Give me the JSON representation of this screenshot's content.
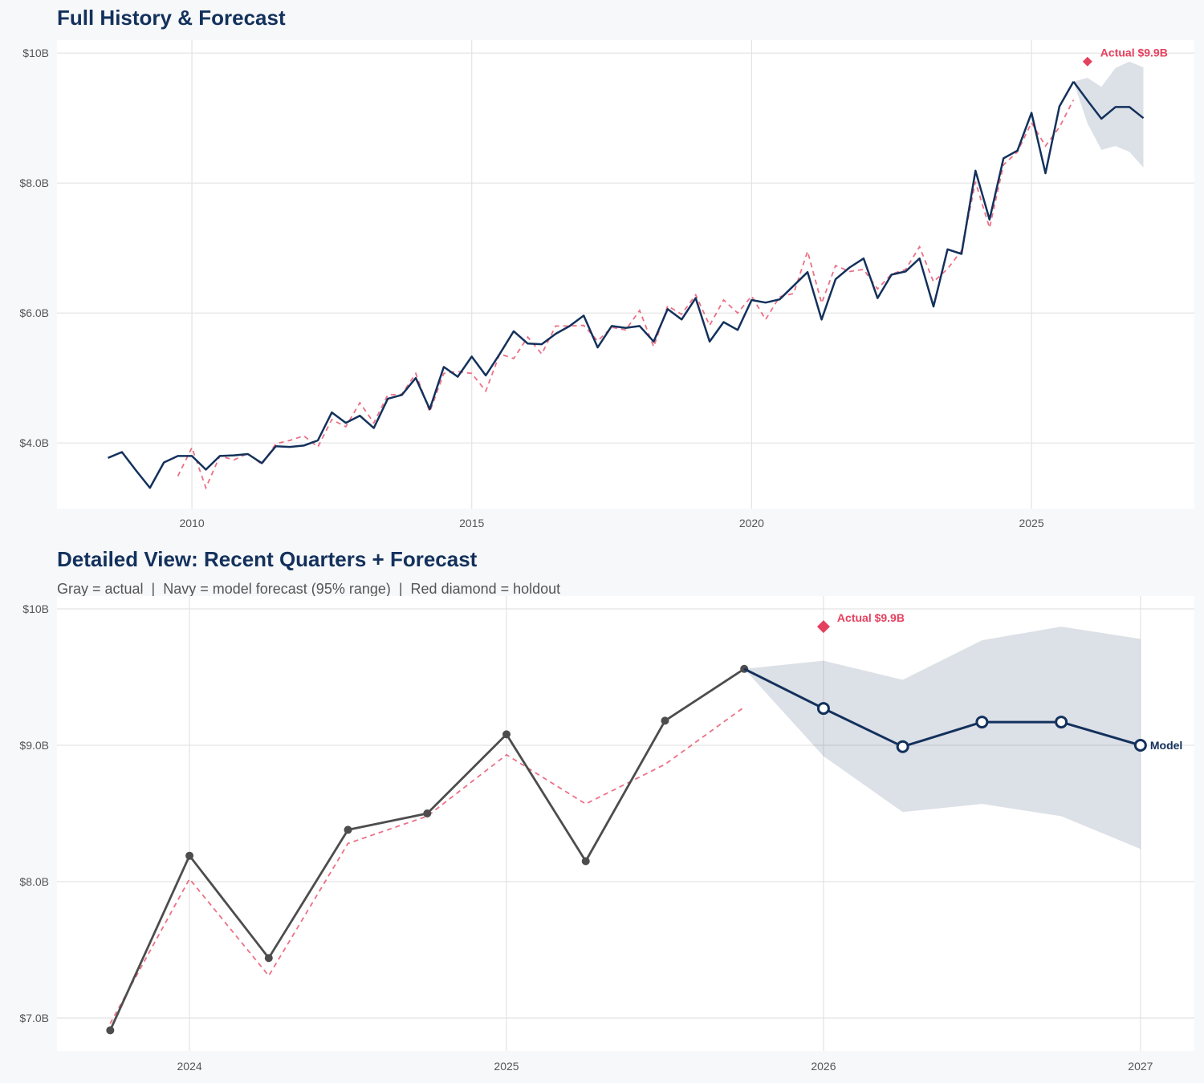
{
  "colors": {
    "navy": "#13315c",
    "red": "#e5405e",
    "gray": "#4d4d4d",
    "band": "#13315c",
    "grid": "#e3e3e3",
    "panel": "#ffffff",
    "background": "#f7f8fa"
  },
  "chart_data": [
    {
      "type": "line",
      "title": "Full History & Forecast",
      "subtitle": "",
      "xlabel": "",
      "ylabel": "",
      "xlim": [
        2007.59,
        2027.91
      ],
      "ylim": [
        2.99,
        10.2
      ],
      "grid": true,
      "x_ticks": [
        {
          "value": 2010,
          "label": "2010"
        },
        {
          "value": 2015,
          "label": "2015"
        },
        {
          "value": 2020,
          "label": "2020"
        },
        {
          "value": 2025,
          "label": "2025"
        }
      ],
      "y_ticks": [
        {
          "value": 4,
          "label": "$4.0B"
        },
        {
          "value": 6,
          "label": "$6.0B"
        },
        {
          "value": 8,
          "label": "$8.0B"
        },
        {
          "value": 10,
          "label": "$10B"
        }
      ],
      "actual": [
        [
          2008.5,
          3.77
        ],
        [
          2008.75,
          3.86
        ],
        [
          2009,
          3.58
        ],
        [
          2009.25,
          3.31
        ],
        [
          2009.5,
          3.7
        ],
        [
          2009.75,
          3.8
        ],
        [
          2010,
          3.8
        ],
        [
          2010.25,
          3.59
        ],
        [
          2010.5,
          3.8
        ],
        [
          2010.75,
          3.81
        ],
        [
          2011,
          3.83
        ],
        [
          2011.25,
          3.69
        ],
        [
          2011.5,
          3.95
        ],
        [
          2011.75,
          3.94
        ],
        [
          2012,
          3.96
        ],
        [
          2012.25,
          4.04
        ],
        [
          2012.5,
          4.47
        ],
        [
          2012.75,
          4.31
        ],
        [
          2013,
          4.42
        ],
        [
          2013.25,
          4.23
        ],
        [
          2013.5,
          4.68
        ],
        [
          2013.75,
          4.74
        ],
        [
          2014,
          5.0
        ],
        [
          2014.25,
          4.52
        ],
        [
          2014.5,
          5.17
        ],
        [
          2014.75,
          5.02
        ],
        [
          2015,
          5.33
        ],
        [
          2015.25,
          5.04
        ],
        [
          2015.5,
          5.37
        ],
        [
          2015.75,
          5.72
        ],
        [
          2016,
          5.53
        ],
        [
          2016.25,
          5.52
        ],
        [
          2016.5,
          5.68
        ],
        [
          2016.75,
          5.8
        ],
        [
          2017,
          5.96
        ],
        [
          2017.25,
          5.47
        ],
        [
          2017.5,
          5.8
        ],
        [
          2017.75,
          5.77
        ],
        [
          2018,
          5.8
        ],
        [
          2018.25,
          5.56
        ],
        [
          2018.5,
          6.06
        ],
        [
          2018.75,
          5.9
        ],
        [
          2019,
          6.23
        ],
        [
          2019.25,
          5.56
        ],
        [
          2019.5,
          5.86
        ],
        [
          2019.75,
          5.74
        ],
        [
          2020,
          6.2
        ],
        [
          2020.25,
          6.16
        ],
        [
          2020.5,
          6.21
        ],
        [
          2020.75,
          6.42
        ],
        [
          2021,
          6.63
        ],
        [
          2021.25,
          5.9
        ],
        [
          2021.5,
          6.52
        ],
        [
          2021.75,
          6.7
        ],
        [
          2022,
          6.84
        ],
        [
          2022.25,
          6.23
        ],
        [
          2022.5,
          6.59
        ],
        [
          2022.75,
          6.64
        ],
        [
          2023,
          6.84
        ],
        [
          2023.25,
          6.1
        ],
        [
          2023.5,
          6.98
        ],
        [
          2023.75,
          6.91
        ],
        [
          2024,
          8.19
        ],
        [
          2024.25,
          7.44
        ],
        [
          2024.5,
          8.38
        ],
        [
          2024.75,
          8.5
        ],
        [
          2025,
          9.08
        ],
        [
          2025.25,
          8.15
        ],
        [
          2025.5,
          9.18
        ],
        [
          2025.75,
          9.56
        ]
      ],
      "fitted": [
        [
          2009.75,
          3.49
        ],
        [
          2010,
          3.93
        ],
        [
          2010.25,
          3.31
        ],
        [
          2010.5,
          3.8
        ],
        [
          2010.75,
          3.74
        ],
        [
          2011,
          3.84
        ],
        [
          2011.25,
          3.67
        ],
        [
          2011.5,
          3.99
        ],
        [
          2011.75,
          4.04
        ],
        [
          2012,
          4.11
        ],
        [
          2012.25,
          3.94
        ],
        [
          2012.5,
          4.36
        ],
        [
          2012.75,
          4.25
        ],
        [
          2013,
          4.62
        ],
        [
          2013.25,
          4.31
        ],
        [
          2013.5,
          4.74
        ],
        [
          2013.75,
          4.75
        ],
        [
          2014,
          5.07
        ],
        [
          2014.25,
          4.48
        ],
        [
          2014.5,
          5.07
        ],
        [
          2014.75,
          5.1
        ],
        [
          2015,
          5.07
        ],
        [
          2015.25,
          4.8
        ],
        [
          2015.5,
          5.37
        ],
        [
          2015.75,
          5.3
        ],
        [
          2016,
          5.63
        ],
        [
          2016.25,
          5.37
        ],
        [
          2016.5,
          5.8
        ],
        [
          2016.75,
          5.8
        ],
        [
          2017,
          5.81
        ],
        [
          2017.25,
          5.57
        ],
        [
          2017.5,
          5.78
        ],
        [
          2017.75,
          5.74
        ],
        [
          2018,
          6.04
        ],
        [
          2018.25,
          5.48
        ],
        [
          2018.5,
          6.11
        ],
        [
          2018.75,
          5.98
        ],
        [
          2019,
          6.28
        ],
        [
          2019.25,
          5.81
        ],
        [
          2019.5,
          6.2
        ],
        [
          2019.75,
          6.0
        ],
        [
          2020,
          6.26
        ],
        [
          2020.25,
          5.9
        ],
        [
          2020.5,
          6.25
        ],
        [
          2020.75,
          6.3
        ],
        [
          2021,
          6.95
        ],
        [
          2021.25,
          6.15
        ],
        [
          2021.5,
          6.73
        ],
        [
          2021.75,
          6.64
        ],
        [
          2022,
          6.67
        ],
        [
          2022.25,
          6.37
        ],
        [
          2022.5,
          6.6
        ],
        [
          2022.75,
          6.67
        ],
        [
          2023,
          7.02
        ],
        [
          2023.25,
          6.48
        ],
        [
          2023.5,
          6.68
        ],
        [
          2023.75,
          6.96
        ],
        [
          2024,
          8.02
        ],
        [
          2024.25,
          7.31
        ],
        [
          2024.5,
          8.28
        ],
        [
          2024.75,
          8.48
        ],
        [
          2025,
          8.93
        ],
        [
          2025.25,
          8.57
        ],
        [
          2025.5,
          8.86
        ],
        [
          2025.75,
          9.28
        ]
      ],
      "forecast": [
        [
          2025.75,
          9.56
        ],
        [
          2026,
          9.27
        ],
        [
          2026.25,
          8.99
        ],
        [
          2026.5,
          9.17
        ],
        [
          2026.75,
          9.17
        ],
        [
          2027,
          9.0
        ]
      ],
      "band_upper": [
        [
          2025.75,
          9.56
        ],
        [
          2026,
          9.62
        ],
        [
          2026.25,
          9.48
        ],
        [
          2026.5,
          9.77
        ],
        [
          2026.75,
          9.87
        ],
        [
          2027,
          9.78
        ]
      ],
      "band_lower": [
        [
          2025.75,
          9.56
        ],
        [
          2026,
          8.92
        ],
        [
          2026.25,
          8.51
        ],
        [
          2026.5,
          8.57
        ],
        [
          2026.75,
          8.48
        ],
        [
          2027,
          8.24
        ]
      ],
      "holdout": {
        "x": 2026,
        "y": 9.87,
        "label": "Actual $9.9B"
      },
      "end_label": ""
    },
    {
      "type": "line",
      "title": "Detailed View: Recent Quarters + Forecast",
      "subtitle": "Gray = actual  |  Navy = model forecast (95% range)  |  Red diamond = holdout",
      "xlabel": "",
      "ylabel": "",
      "xlim": [
        2023.582,
        2027.17
      ],
      "ylim": [
        6.759,
        10.094
      ],
      "grid": true,
      "x_ticks": [
        {
          "value": 2024,
          "label": "2024"
        },
        {
          "value": 2025,
          "label": "2025"
        },
        {
          "value": 2026,
          "label": "2026"
        },
        {
          "value": 2027,
          "label": "2027"
        }
      ],
      "y_ticks": [
        {
          "value": 7,
          "label": "$7.0B"
        },
        {
          "value": 8,
          "label": "$8.0B"
        },
        {
          "value": 9,
          "label": "$9.0B"
        },
        {
          "value": 10,
          "label": "$10B"
        }
      ],
      "actual": [
        [
          2023.75,
          6.91
        ],
        [
          2024,
          8.19
        ],
        [
          2024.25,
          7.44
        ],
        [
          2024.5,
          8.38
        ],
        [
          2024.75,
          8.5
        ],
        [
          2025,
          9.08
        ],
        [
          2025.25,
          8.15
        ],
        [
          2025.5,
          9.18
        ],
        [
          2025.75,
          9.56
        ]
      ],
      "fitted": [
        [
          2023.75,
          6.96
        ],
        [
          2024,
          8.02
        ],
        [
          2024.25,
          7.31
        ],
        [
          2024.5,
          8.28
        ],
        [
          2024.75,
          8.48
        ],
        [
          2025,
          8.93
        ],
        [
          2025.25,
          8.57
        ],
        [
          2025.5,
          8.86
        ],
        [
          2025.75,
          9.28
        ]
      ],
      "forecast": [
        [
          2025.75,
          9.56
        ],
        [
          2026,
          9.27
        ],
        [
          2026.25,
          8.99
        ],
        [
          2026.5,
          9.17
        ],
        [
          2026.75,
          9.17
        ],
        [
          2027,
          9.0
        ]
      ],
      "band_upper": [
        [
          2025.75,
          9.56
        ],
        [
          2026,
          9.62
        ],
        [
          2026.25,
          9.48
        ],
        [
          2026.5,
          9.77
        ],
        [
          2026.75,
          9.87
        ],
        [
          2027,
          9.78
        ]
      ],
      "band_lower": [
        [
          2025.75,
          9.56
        ],
        [
          2026,
          8.92
        ],
        [
          2026.25,
          8.51
        ],
        [
          2026.5,
          8.57
        ],
        [
          2026.75,
          8.48
        ],
        [
          2027,
          8.24
        ]
      ],
      "holdout": {
        "x": 2026,
        "y": 9.87,
        "label": "Actual $9.9B"
      },
      "end_label": "Model"
    }
  ]
}
